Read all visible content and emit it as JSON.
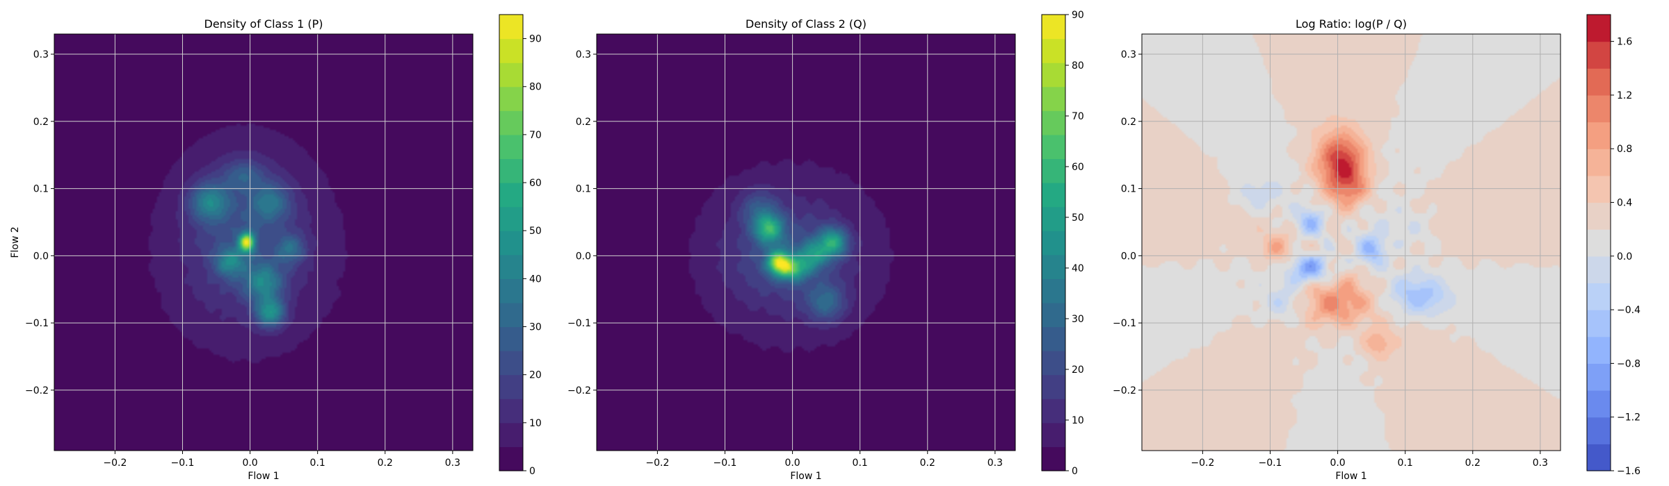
{
  "chart_data": [
    {
      "type": "heatmap",
      "title": "Density of Class 1 (P)",
      "xlabel": "Flow 1",
      "ylabel": "Flow 2",
      "xlim": [
        -0.29,
        0.33
      ],
      "ylim": [
        -0.29,
        0.33
      ],
      "xticks": [
        -0.2,
        -0.1,
        0.0,
        0.1,
        0.2,
        0.3
      ],
      "yticks": [
        -0.2,
        -0.1,
        0.0,
        0.1,
        0.2,
        0.3
      ],
      "xtick_labels": [
        "−0.2",
        "−0.1",
        "0.0",
        "0.1",
        "0.2",
        "0.3"
      ],
      "ytick_labels": [
        "−0.2",
        "−0.1",
        "0.0",
        "0.1",
        "0.2",
        "0.3"
      ],
      "grid": true,
      "colormap": "viridis",
      "colorbar": {
        "min": 0,
        "max": 95,
        "ticks": [
          0,
          10,
          20,
          30,
          40,
          50,
          60,
          70,
          80,
          90
        ],
        "tick_labels": [
          "0",
          "10",
          "20",
          "30",
          "40",
          "50",
          "60",
          "70",
          "80",
          "90"
        ]
      },
      "density_blobs": [
        {
          "x": 0.0,
          "y": 0.0,
          "sx": 0.12,
          "sy": 0.13,
          "peak": 9
        },
        {
          "x": -0.01,
          "y": 0.04,
          "sx": 0.06,
          "sy": 0.08,
          "peak": 14
        },
        {
          "x": -0.005,
          "y": 0.02,
          "sx": 0.008,
          "sy": 0.01,
          "peak": 72
        },
        {
          "x": -0.06,
          "y": 0.08,
          "sx": 0.02,
          "sy": 0.02,
          "peak": 30
        },
        {
          "x": 0.03,
          "y": 0.08,
          "sx": 0.02,
          "sy": 0.02,
          "peak": 22
        },
        {
          "x": -0.03,
          "y": -0.01,
          "sx": 0.015,
          "sy": 0.015,
          "peak": 28
        },
        {
          "x": 0.02,
          "y": -0.04,
          "sx": 0.02,
          "sy": 0.02,
          "peak": 30
        },
        {
          "x": 0.03,
          "y": -0.085,
          "sx": 0.015,
          "sy": 0.015,
          "peak": 38
        },
        {
          "x": 0.06,
          "y": 0.01,
          "sx": 0.015,
          "sy": 0.015,
          "peak": 22
        },
        {
          "x": -0.01,
          "y": 0.12,
          "sx": 0.02,
          "sy": 0.015,
          "peak": 16
        }
      ]
    },
    {
      "type": "heatmap",
      "title": "Density of Class 2 (Q)",
      "xlabel": "Flow 1",
      "ylabel": "",
      "xlim": [
        -0.29,
        0.33
      ],
      "ylim": [
        -0.29,
        0.33
      ],
      "xticks": [
        -0.2,
        -0.1,
        0.0,
        0.1,
        0.2,
        0.3
      ],
      "yticks": [
        -0.2,
        -0.1,
        0.0,
        0.1,
        0.2,
        0.3
      ],
      "xtick_labels": [
        "−0.2",
        "−0.1",
        "0.0",
        "0.1",
        "0.2",
        "0.3"
      ],
      "ytick_labels": [
        "−0.2",
        "−0.1",
        "0.0",
        "0.1",
        "0.2",
        "0.3"
      ],
      "grid": true,
      "colormap": "viridis",
      "colorbar": {
        "min": 0,
        "max": 90,
        "ticks": [
          0,
          10,
          20,
          30,
          40,
          50,
          60,
          70,
          80,
          90
        ],
        "tick_labels": [
          "0",
          "10",
          "20",
          "30",
          "40",
          "50",
          "60",
          "70",
          "80",
          "90"
        ]
      },
      "density_blobs": [
        {
          "x": 0.0,
          "y": 0.0,
          "sx": 0.12,
          "sy": 0.12,
          "peak": 9
        },
        {
          "x": -0.01,
          "y": 0.0,
          "sx": 0.06,
          "sy": 0.05,
          "peak": 14
        },
        {
          "x": -0.035,
          "y": 0.04,
          "sx": 0.015,
          "sy": 0.015,
          "peak": 42
        },
        {
          "x": -0.02,
          "y": -0.01,
          "sx": 0.012,
          "sy": 0.012,
          "peak": 60
        },
        {
          "x": 0.0,
          "y": -0.02,
          "sx": 0.015,
          "sy": 0.012,
          "peak": 40
        },
        {
          "x": 0.06,
          "y": 0.02,
          "sx": 0.015,
          "sy": 0.015,
          "peak": 42
        },
        {
          "x": 0.03,
          "y": 0.0,
          "sx": 0.015,
          "sy": 0.015,
          "peak": 30
        },
        {
          "x": 0.05,
          "y": -0.07,
          "sx": 0.02,
          "sy": 0.02,
          "peak": 22
        },
        {
          "x": -0.05,
          "y": 0.07,
          "sx": 0.02,
          "sy": 0.02,
          "peak": 16
        }
      ]
    },
    {
      "type": "heatmap",
      "title": "Log Ratio: log(P / Q)",
      "xlabel": "Flow 1",
      "ylabel": "",
      "xlim": [
        -0.29,
        0.33
      ],
      "ylim": [
        -0.29,
        0.33
      ],
      "xticks": [
        -0.2,
        -0.1,
        0.0,
        0.1,
        0.2,
        0.3
      ],
      "yticks": [
        -0.2,
        -0.1,
        0.0,
        0.1,
        0.2,
        0.3
      ],
      "xtick_labels": [
        "−0.2",
        "−0.1",
        "0.0",
        "0.1",
        "0.2",
        "0.3"
      ],
      "ytick_labels": [
        "−0.2",
        "−0.1",
        "0.0",
        "0.1",
        "0.2",
        "0.3"
      ],
      "grid": true,
      "colormap": "coolwarm",
      "colorbar": {
        "min": -1.6,
        "max": 1.8,
        "ticks": [
          -1.6,
          -1.2,
          -0.8,
          -0.4,
          0.0,
          0.4,
          0.8,
          1.2,
          1.6
        ],
        "tick_labels": [
          "−1.6",
          "−1.2",
          "−0.8",
          "−0.4",
          "0.0",
          "0.4",
          "0.8",
          "1.2",
          "1.6"
        ]
      },
      "ratio_blobs": [
        {
          "x": 0.005,
          "y": 0.14,
          "sx": 0.025,
          "sy": 0.03,
          "v": 1.3
        },
        {
          "x": 0.02,
          "y": 0.1,
          "sx": 0.02,
          "sy": 0.02,
          "v": 0.6
        },
        {
          "x": 0.0,
          "y": -0.07,
          "sx": 0.03,
          "sy": 0.025,
          "v": 0.9
        },
        {
          "x": 0.06,
          "y": -0.13,
          "sx": 0.015,
          "sy": 0.015,
          "v": 0.5
        },
        {
          "x": -0.09,
          "y": 0.01,
          "sx": 0.015,
          "sy": 0.015,
          "v": 0.5
        },
        {
          "x": -0.04,
          "y": -0.02,
          "sx": 0.02,
          "sy": 0.015,
          "v": -1.0
        },
        {
          "x": -0.04,
          "y": 0.05,
          "sx": 0.015,
          "sy": 0.015,
          "v": -0.7
        },
        {
          "x": 0.05,
          "y": 0.01,
          "sx": 0.015,
          "sy": 0.015,
          "v": -0.9
        },
        {
          "x": 0.12,
          "y": -0.06,
          "sx": 0.03,
          "sy": 0.02,
          "v": -0.7
        },
        {
          "x": -0.08,
          "y": -0.07,
          "sx": 0.02,
          "sy": 0.02,
          "v": -0.4
        },
        {
          "x": 0.1,
          "y": 0.04,
          "sx": 0.03,
          "sy": 0.02,
          "v": -0.3
        },
        {
          "x": -0.12,
          "y": 0.09,
          "sx": 0.025,
          "sy": 0.02,
          "v": -0.3
        }
      ]
    }
  ]
}
